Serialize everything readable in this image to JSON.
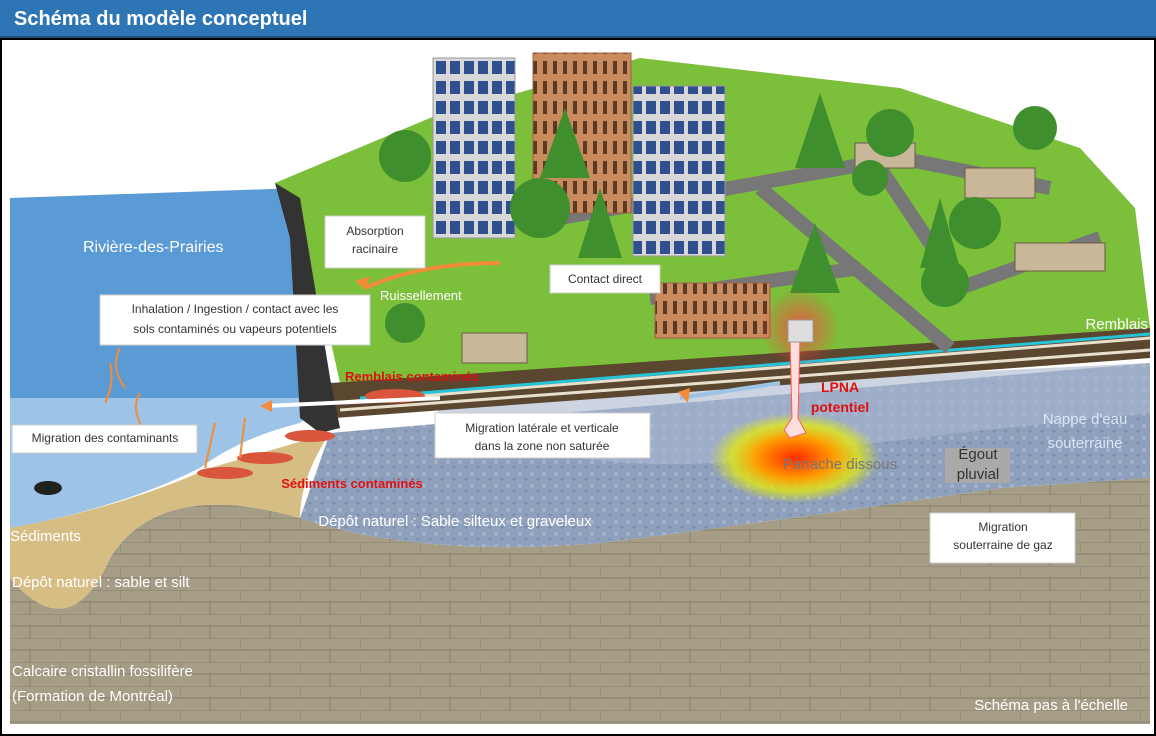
{
  "header": {
    "title": "Schéma du modèle conceptuel"
  },
  "labels": [
    {
      "lines": [
        "Rivière-des-Prairies"
      ]
    },
    {
      "lines": [
        "Absorption",
        "racinaire"
      ]
    },
    {
      "lines": [
        "Ruissellement"
      ]
    },
    {
      "lines": [
        "Contact direct"
      ]
    },
    {
      "lines": [
        "Inhalation / Ingestion / contact avec les",
        "sols contaminés ou vapeurs potentiels"
      ]
    },
    {
      "lines": [
        "Remblais"
      ]
    },
    {
      "lines": [
        "Remblais contaminés"
      ]
    },
    {
      "lines": [
        "LPNA",
        "potentiel"
      ]
    },
    {
      "lines": [
        "Migration des contaminants"
      ]
    },
    {
      "lines": [
        "Migration latérale et verticale",
        "dans la zone non saturée"
      ]
    },
    {
      "lines": [
        "Nappe d'eau",
        "souterraine"
      ]
    },
    {
      "lines": [
        "Panache dissous"
      ]
    },
    {
      "lines": [
        "Égout",
        "pluvial"
      ]
    },
    {
      "lines": [
        "Sédiments contaminés"
      ]
    },
    {
      "lines": [
        "Dépôt naturel : Sable silteux et graveleux"
      ]
    },
    {
      "lines": [
        "Migration",
        "souterraine de gaz"
      ]
    },
    {
      "lines": [
        "Sédiments"
      ]
    },
    {
      "lines": [
        "Dépôt naturel : sable et silt"
      ]
    },
    {
      "lines": [
        "Calcaire cristallin fossilifère",
        "(Formation de Montréal)"
      ]
    },
    {
      "lines": [
        "Schéma pas à l'échelle"
      ]
    }
  ]
}
